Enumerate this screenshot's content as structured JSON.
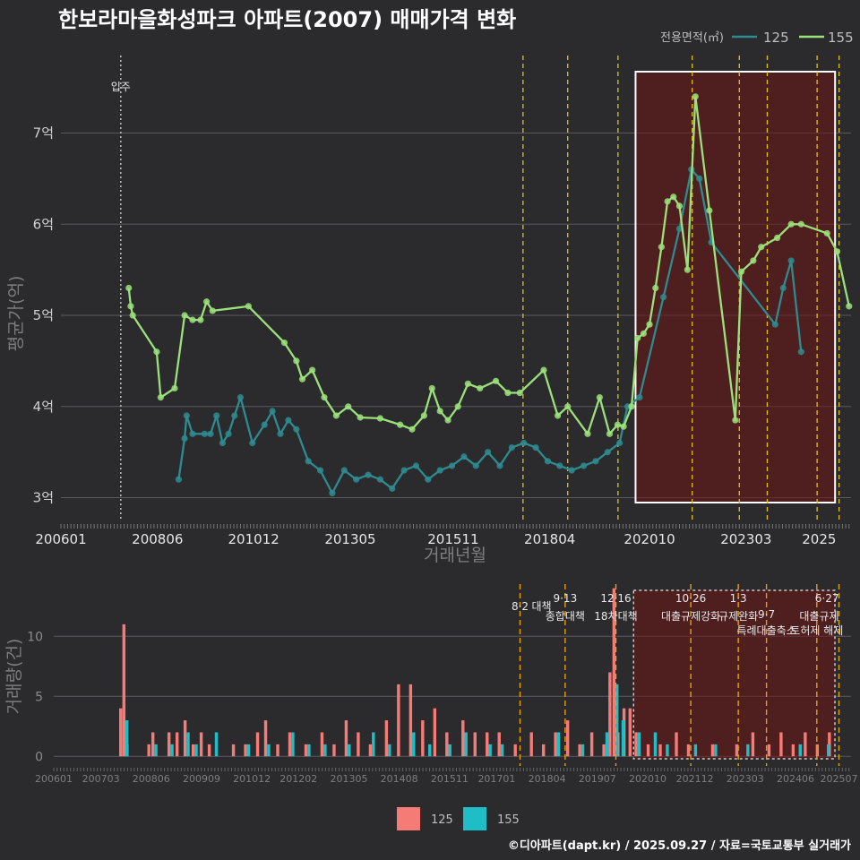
{
  "chart_data": [
    {
      "type": "line",
      "title": "한보라마을화성파크 아파트(2007) 매매가격 변화",
      "xlabel": "거래년월",
      "ylabel": "평균가(억)",
      "legend": {
        "title": "전용면적(㎡)",
        "position": "top-right"
      },
      "x_range": [
        2006.0,
        2025.8
      ],
      "ylim": [
        2.75,
        7.85
      ],
      "y_ticks": [
        {
          "value": 3,
          "label": "3억"
        },
        {
          "value": 4,
          "label": "4억"
        },
        {
          "value": 5,
          "label": "5억"
        },
        {
          "value": 6,
          "label": "6억"
        },
        {
          "value": 7,
          "label": "7억"
        }
      ],
      "x_ticks": [
        {
          "value": 2006.0,
          "label": "200601"
        },
        {
          "value": 2008.42,
          "label": "200806"
        },
        {
          "value": 2010.83,
          "label": "201012"
        },
        {
          "value": 2013.25,
          "label": "201305"
        },
        {
          "value": 2015.83,
          "label": "201511"
        },
        {
          "value": 2018.25,
          "label": "201804"
        },
        {
          "value": 2020.75,
          "label": "202010"
        },
        {
          "value": 2023.17,
          "label": "202303"
        },
        {
          "value": 2025.0,
          "label": "2025"
        }
      ],
      "move_in": {
        "x": 2007.5,
        "label": "입주"
      },
      "policy_lines": [
        2017.58,
        2018.7,
        2019.96,
        2021.82,
        2023.0,
        2023.7,
        2024.95,
        2025.5
      ],
      "highlight_range": [
        2020.4,
        2025.4
      ],
      "series": [
        {
          "name": "125",
          "color": "#2e8b8f",
          "x": [
            2008.95,
            2009.1,
            2009.15,
            2009.3,
            2009.6,
            2009.75,
            2009.9,
            2010.05,
            2010.2,
            2010.35,
            2010.5,
            2010.8,
            2011.1,
            2011.3,
            2011.5,
            2011.7,
            2011.9,
            2012.2,
            2012.5,
            2012.8,
            2013.1,
            2013.4,
            2013.7,
            2014.0,
            2014.3,
            2014.6,
            2014.9,
            2015.2,
            2015.5,
            2015.8,
            2016.1,
            2016.4,
            2016.7,
            2017.0,
            2017.3,
            2017.6,
            2017.9,
            2018.2,
            2018.5,
            2018.8,
            2019.1,
            2019.4,
            2019.7,
            2020.0,
            2020.2,
            2020.5,
            2021.1,
            2021.5,
            2021.8,
            2022.0,
            2022.3,
            2023.9,
            2024.1,
            2024.3,
            2024.55
          ],
          "y": [
            3.2,
            3.65,
            3.9,
            3.7,
            3.7,
            3.7,
            3.9,
            3.6,
            3.7,
            3.9,
            4.1,
            3.6,
            3.8,
            3.95,
            3.7,
            3.85,
            3.75,
            3.4,
            3.3,
            3.05,
            3.3,
            3.2,
            3.25,
            3.2,
            3.1,
            3.3,
            3.35,
            3.2,
            3.3,
            3.35,
            3.45,
            3.35,
            3.5,
            3.35,
            3.55,
            3.6,
            3.55,
            3.4,
            3.35,
            3.3,
            3.35,
            3.4,
            3.5,
            3.6,
            4.0,
            4.1,
            5.2,
            5.95,
            6.6,
            6.5,
            5.8,
            4.9,
            5.3,
            5.6,
            4.6
          ]
        },
        {
          "name": "155",
          "color": "#9be07a",
          "x": [
            2007.7,
            2007.75,
            2007.8,
            2008.4,
            2008.5,
            2008.85,
            2009.1,
            2009.3,
            2009.5,
            2009.65,
            2009.8,
            2010.7,
            2011.6,
            2011.9,
            2012.05,
            2012.3,
            2012.6,
            2012.9,
            2013.2,
            2013.5,
            2014.0,
            2014.5,
            2014.8,
            2015.1,
            2015.3,
            2015.5,
            2015.7,
            2015.95,
            2016.2,
            2016.5,
            2016.9,
            2017.2,
            2017.5,
            2018.1,
            2018.45,
            2018.7,
            2019.2,
            2019.5,
            2019.75,
            2019.95,
            2020.1,
            2020.3,
            2020.45,
            2020.6,
            2020.75,
            2020.9,
            2021.05,
            2021.2,
            2021.35,
            2021.5,
            2021.7,
            2021.9,
            2022.25,
            2022.9,
            2023.05,
            2023.35,
            2023.55,
            2023.95,
            2024.3,
            2024.55,
            2025.2,
            2025.45,
            2025.75
          ],
          "y": [
            5.3,
            5.1,
            5.0,
            4.6,
            4.1,
            4.2,
            5.0,
            4.95,
            4.95,
            5.15,
            5.05,
            5.1,
            4.7,
            4.5,
            4.3,
            4.4,
            4.1,
            3.9,
            4.0,
            3.88,
            3.87,
            3.8,
            3.75,
            3.9,
            4.2,
            3.95,
            3.85,
            4.0,
            4.25,
            4.2,
            4.28,
            4.15,
            4.15,
            4.4,
            3.9,
            4.0,
            3.7,
            4.1,
            3.7,
            3.8,
            3.78,
            4.0,
            4.75,
            4.8,
            4.9,
            5.3,
            5.75,
            6.25,
            6.3,
            6.2,
            5.5,
            7.4,
            6.15,
            3.85,
            5.48,
            5.6,
            5.75,
            5.85,
            6.0,
            6.0,
            5.9,
            5.7,
            5.1
          ]
        }
      ]
    },
    {
      "type": "bar",
      "xlabel": "",
      "ylabel": "거래량(건)",
      "ylim": [
        -0.8,
        14.5
      ],
      "y_ticks": [
        {
          "value": 0,
          "label": "0"
        },
        {
          "value": 5,
          "label": "5"
        },
        {
          "value": 10,
          "label": "10"
        }
      ],
      "x_ticks": [
        {
          "value": 2006.0,
          "label": "200601"
        },
        {
          "value": 2007.17,
          "label": "200703"
        },
        {
          "value": 2008.42,
          "label": "200806"
        },
        {
          "value": 2009.67,
          "label": "200909"
        },
        {
          "value": 2010.92,
          "label": "201012"
        },
        {
          "value": 2012.08,
          "label": "201202"
        },
        {
          "value": 2013.33,
          "label": "201305"
        },
        {
          "value": 2014.58,
          "label": "201408"
        },
        {
          "value": 2015.83,
          "label": "201511"
        },
        {
          "value": 2017.0,
          "label": "201701"
        },
        {
          "value": 2018.25,
          "label": "201804"
        },
        {
          "value": 2019.5,
          "label": "201907"
        },
        {
          "value": 2020.75,
          "label": "202010"
        },
        {
          "value": 2021.92,
          "label": "202112"
        },
        {
          "value": 2023.17,
          "label": "202303"
        },
        {
          "value": 2024.42,
          "label": "202406"
        },
        {
          "value": 2025.5,
          "label": "202507"
        }
      ],
      "events": [
        {
          "x": 2017.58,
          "date": "8·2",
          "name": "대책"
        },
        {
          "x": 2018.7,
          "date": "9·13",
          "name": "종합대책"
        },
        {
          "x": 2019.96,
          "date": "12·16",
          "name": "18차대책"
        },
        {
          "x": 2021.82,
          "date": "10·26",
          "name": "대출규제강화"
        },
        {
          "x": 2023.0,
          "date": "1·3",
          "name": "규제완화"
        },
        {
          "x": 2023.7,
          "date": "9·7",
          "name": "특례대출축소"
        },
        {
          "x": 2024.95,
          "date": "",
          "name": "토허제 해제"
        },
        {
          "x": 2025.5,
          "date": "6·27",
          "name": "대출규제"
        }
      ],
      "highlight_range": [
        2020.4,
        2025.4
      ],
      "series": [
        {
          "name": "125",
          "color": "#f47b76",
          "x": [
            2007.7,
            2007.78,
            2007.86,
            2008.4,
            2008.5,
            2008.9,
            2009.1,
            2009.3,
            2009.5,
            2009.7,
            2009.9,
            2010.5,
            2010.8,
            2011.1,
            2011.3,
            2011.6,
            2011.9,
            2012.3,
            2012.7,
            2013.0,
            2013.3,
            2013.6,
            2013.9,
            2014.3,
            2014.6,
            2014.9,
            2015.2,
            2015.5,
            2015.8,
            2016.2,
            2016.5,
            2016.8,
            2017.1,
            2017.5,
            2017.9,
            2018.2,
            2018.5,
            2018.8,
            2019.1,
            2019.4,
            2019.7,
            2019.85,
            2019.95,
            2020.05,
            2020.2,
            2020.35,
            2020.5,
            2020.8,
            2021.1,
            2021.5,
            2021.8,
            2022.4,
            2023.0,
            2023.4,
            2023.8,
            2024.1,
            2024.4,
            2024.7,
            2025.0,
            2025.3
          ],
          "y": [
            4,
            11,
            1,
            1,
            2,
            2,
            2,
            3,
            1,
            2,
            1,
            1,
            1,
            2,
            3,
            1,
            2,
            1,
            2,
            1,
            3,
            2,
            1,
            3,
            6,
            6,
            3,
            4,
            2,
            3,
            2,
            2,
            2,
            1,
            2,
            1,
            2,
            3,
            1,
            2,
            1,
            7,
            14,
            2,
            4,
            4,
            2,
            1,
            1,
            2,
            1,
            1,
            1,
            2,
            1,
            2,
            1,
            2,
            1,
            2
          ]
        },
        {
          "name": "155",
          "color": "#1fbec6",
          "x": [
            2007.78,
            2008.5,
            2008.9,
            2009.3,
            2009.5,
            2010.0,
            2010.8,
            2011.3,
            2011.9,
            2012.3,
            2012.7,
            2013.3,
            2013.9,
            2014.3,
            2014.9,
            2015.3,
            2015.8,
            2016.2,
            2016.8,
            2017.1,
            2018.5,
            2019.1,
            2019.7,
            2019.95,
            2020.1,
            2020.5,
            2020.9,
            2021.2,
            2021.9,
            2022.4,
            2023.2,
            2024.5,
            2025.2
          ],
          "y": [
            3,
            1,
            1,
            2,
            1,
            2,
            1,
            1,
            2,
            1,
            1,
            1,
            2,
            1,
            2,
            1,
            1,
            2,
            1,
            1,
            2,
            1,
            2,
            6,
            3,
            2,
            2,
            1,
            1,
            1,
            1,
            1,
            1
          ]
        }
      ]
    }
  ],
  "caption": "©디아파트(dapt.kr) / 2025.09.27 / 자료=국토교통부 실거래가"
}
